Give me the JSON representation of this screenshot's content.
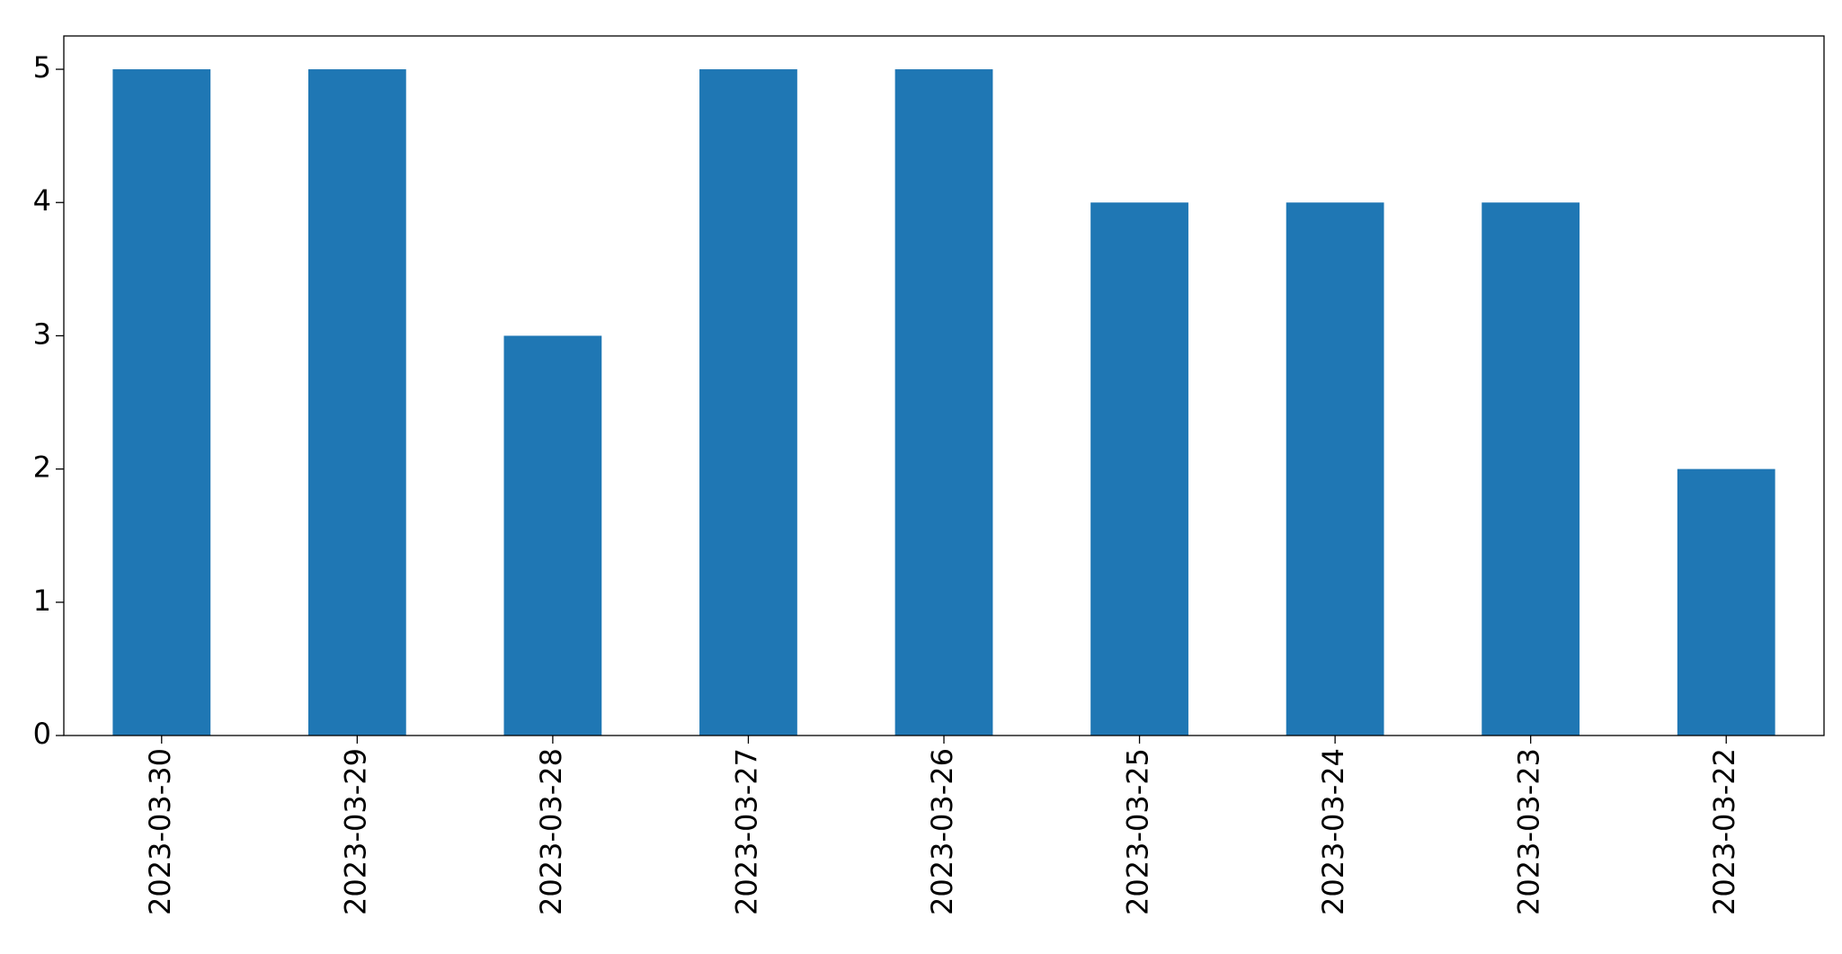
{
  "chart_data": {
    "type": "bar",
    "categories": [
      "2023-03-30",
      "2023-03-29",
      "2023-03-28",
      "2023-03-27",
      "2023-03-26",
      "2023-03-25",
      "2023-03-24",
      "2023-03-23",
      "2023-03-22"
    ],
    "values": [
      5,
      5,
      3,
      5,
      5,
      4,
      4,
      4,
      2
    ],
    "color": "#1f77b4",
    "ylim": [
      0,
      5.25
    ],
    "yticks": [
      0,
      1,
      2,
      3,
      4,
      5
    ],
    "grid": false
  }
}
